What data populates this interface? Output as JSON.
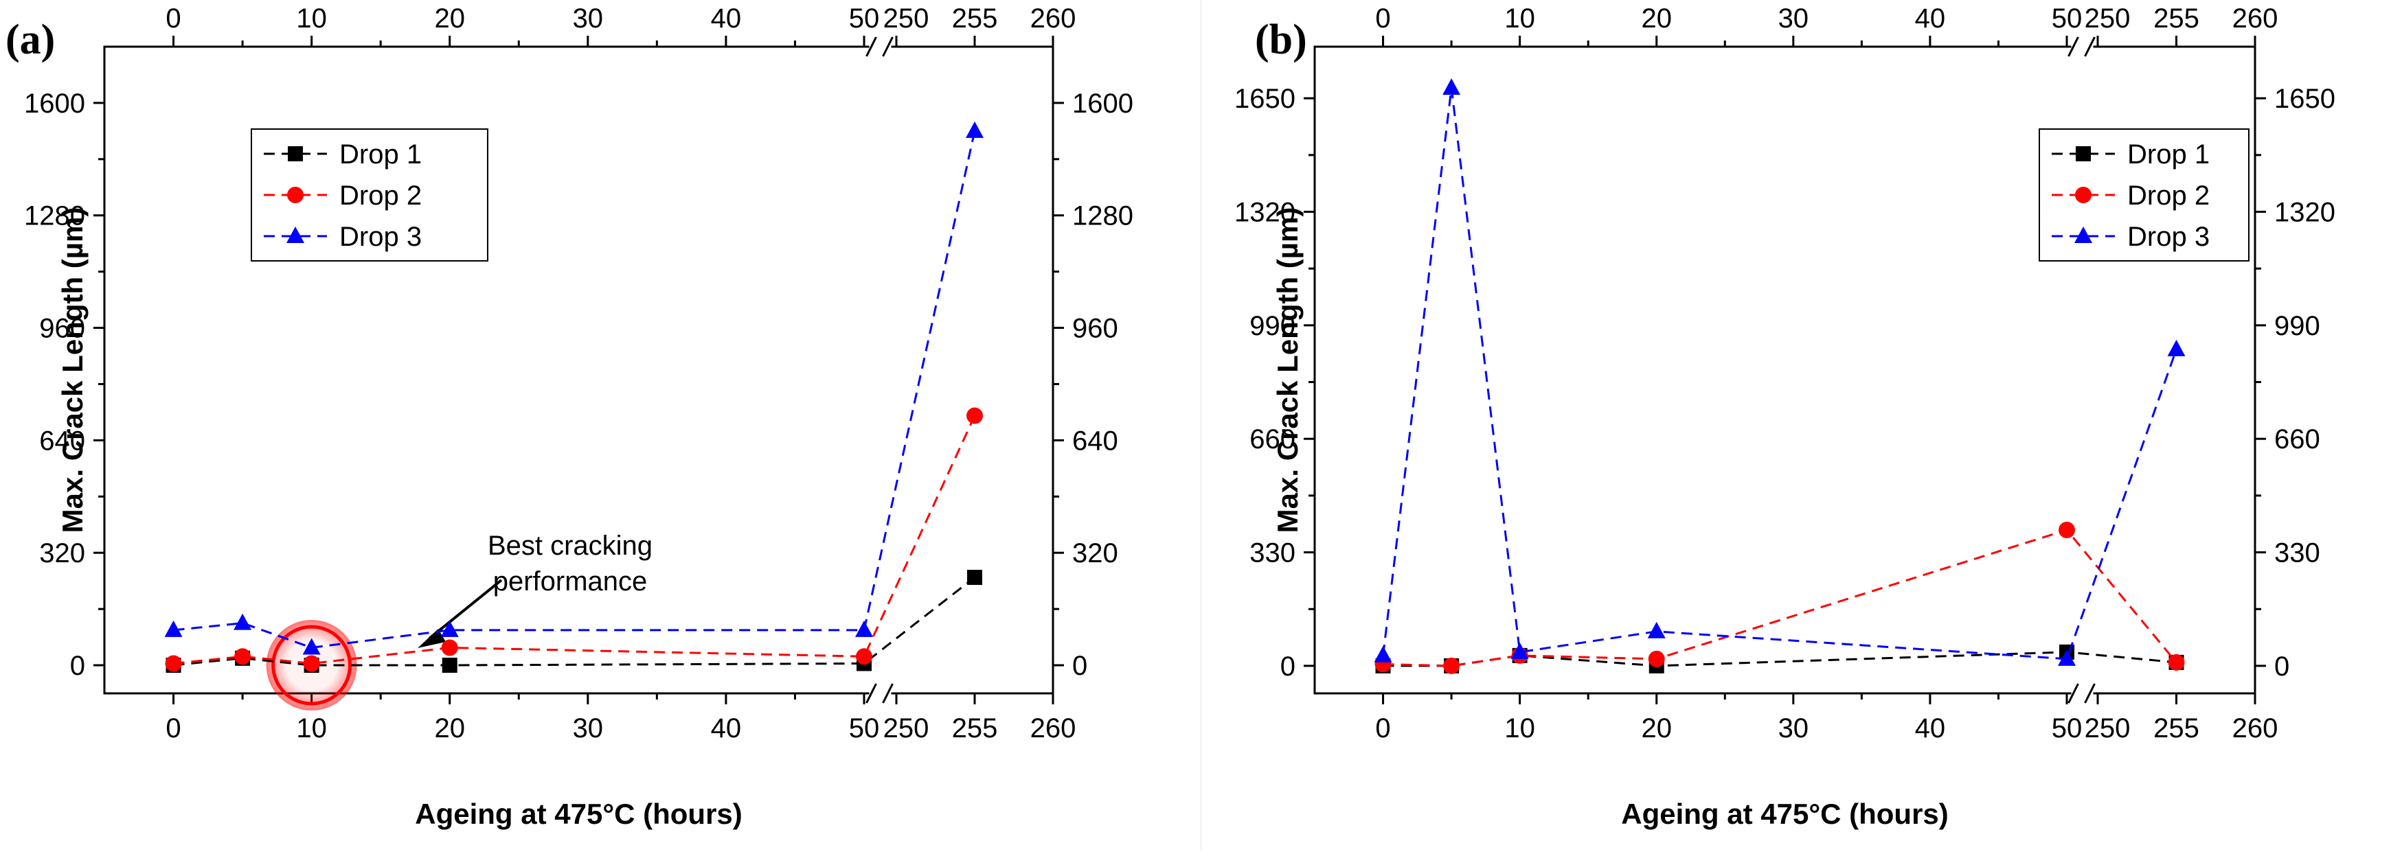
{
  "chart_data": [
    {
      "type": "line",
      "panel_label": "(a)",
      "xlabel": "Ageing at 475°C (hours)",
      "ylabel": "Max. Crack Length (µm)",
      "x_axis": {
        "broken": true,
        "segments": [
          {
            "range": [
              -5,
              50
            ]
          },
          {
            "range": [
              250,
              260
            ]
          }
        ],
        "ticks": [
          0,
          10,
          20,
          30,
          40,
          50,
          250,
          255,
          260
        ],
        "tick_labels": [
          "0",
          "10",
          "20",
          "30",
          "40",
          "50",
          "250",
          "255",
          "260"
        ]
      },
      "ylim": [
        -80,
        1760
      ],
      "yticks": [
        0,
        320,
        640,
        960,
        1280,
        1600
      ],
      "ytick_labels": [
        "0",
        "320",
        "640",
        "960",
        "1280",
        "1600"
      ],
      "legend_position": "top-left",
      "series": [
        {
          "name": "Drop 1",
          "color": "#000000",
          "marker": "square",
          "x": [
            0,
            5,
            10,
            20,
            50,
            255
          ],
          "values": [
            0,
            20,
            0,
            0,
            5,
            250
          ]
        },
        {
          "name": "Drop 2",
          "color": "#ff0000",
          "marker": "circle",
          "x": [
            0,
            5,
            10,
            20,
            50,
            255
          ],
          "values": [
            5,
            25,
            5,
            50,
            25,
            710
          ]
        },
        {
          "name": "Drop 3",
          "color": "#0000ff",
          "marker": "triangle",
          "x": [
            0,
            5,
            10,
            20,
            50,
            255
          ],
          "values": [
            100,
            120,
            50,
            100,
            100,
            1520
          ]
        }
      ],
      "annotation": {
        "lines": [
          "Best cracking",
          "performance"
        ],
        "target": {
          "x": 10,
          "y": 0
        },
        "highlight_color": "#ff0000"
      }
    },
    {
      "type": "line",
      "panel_label": "(b)",
      "xlabel": "Ageing at 475°C (hours)",
      "ylabel": "Max. Crack Length (µm)",
      "x_axis": {
        "broken": true,
        "segments": [
          {
            "range": [
              -5,
              50
            ]
          },
          {
            "range": [
              250,
              260
            ]
          }
        ],
        "ticks": [
          0,
          10,
          20,
          30,
          40,
          50,
          250,
          255,
          260
        ],
        "tick_labels": [
          "0",
          "10",
          "20",
          "30",
          "40",
          "50",
          "250",
          "255",
          "260"
        ]
      },
      "ylim": [
        -80,
        1800
      ],
      "yticks": [
        0,
        330,
        660,
        990,
        1320,
        1650
      ],
      "ytick_labels": [
        "0",
        "330",
        "660",
        "990",
        "1320",
        "1650"
      ],
      "legend_position": "top-right",
      "series": [
        {
          "name": "Drop 1",
          "color": "#000000",
          "marker": "square",
          "x": [
            0,
            5,
            10,
            20,
            50,
            255
          ],
          "values": [
            0,
            0,
            30,
            0,
            40,
            10
          ]
        },
        {
          "name": "Drop 2",
          "color": "#ff0000",
          "marker": "circle",
          "x": [
            0,
            5,
            10,
            20,
            50,
            255
          ],
          "values": [
            5,
            0,
            30,
            20,
            395,
            10
          ]
        },
        {
          "name": "Drop 3",
          "color": "#0000ff",
          "marker": "triangle",
          "x": [
            0,
            5,
            10,
            20,
            50,
            255
          ],
          "values": [
            30,
            1680,
            40,
            100,
            20,
            920
          ]
        }
      ]
    }
  ]
}
